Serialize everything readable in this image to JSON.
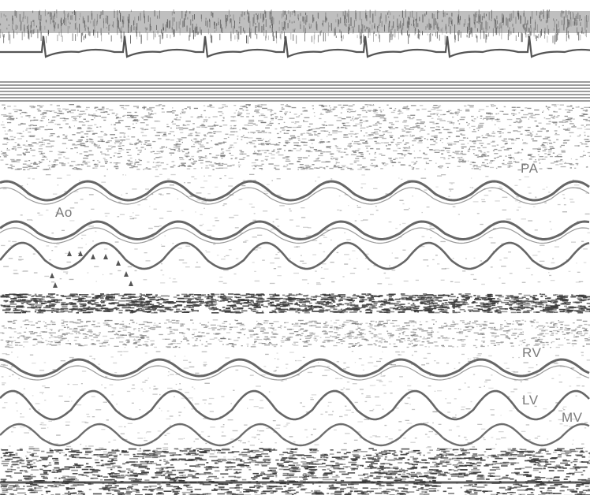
{
  "image": {
    "kind": "M-mode echocardiogram strips with ECG trace",
    "colors": {
      "background": "#ffffff",
      "trace": "#555555",
      "noise": "#6a6a6a",
      "dark_band": "#3a3a3a",
      "label": "#7a7a7a"
    }
  },
  "labels": {
    "pa": "PA",
    "ao": "Ao",
    "rv": "RV",
    "lv": "LV",
    "mv": "MV"
  }
}
